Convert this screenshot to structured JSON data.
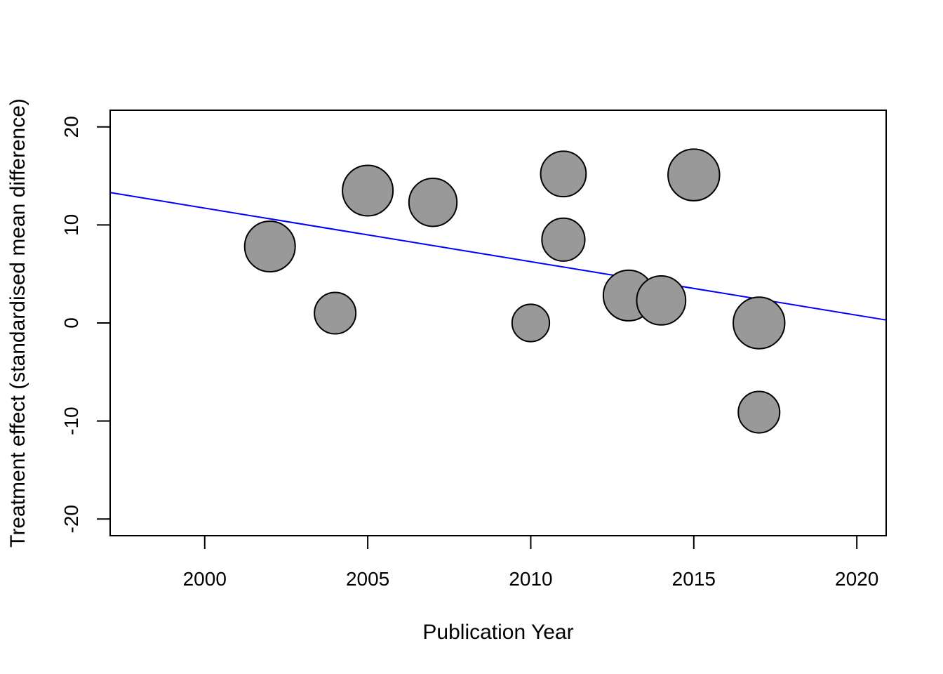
{
  "chart_data": {
    "type": "scatter",
    "title": "",
    "xlabel": "Publication Year",
    "ylabel": "Treatment effect (standardised mean difference)",
    "xlim": [
      1997.1,
      2020.9
    ],
    "ylim": [
      -21.7,
      21.7
    ],
    "x_ticks": [
      "2000",
      "2005",
      "2010",
      "2015",
      "2020"
    ],
    "x_tick_values": [
      2000,
      2005,
      2010,
      2015,
      2020
    ],
    "y_ticks": [
      "-20",
      "-10",
      "0",
      "10",
      "20"
    ],
    "y_tick_values": [
      -20,
      -10,
      0,
      10,
      20
    ],
    "points_relative_size_note_free": true,
    "points": [
      {
        "x": 2002,
        "y": 7.8,
        "size": 1.0
      },
      {
        "x": 2004,
        "y": 1.0,
        "size": 0.82
      },
      {
        "x": 2005,
        "y": 13.5,
        "size": 1.0
      },
      {
        "x": 2007,
        "y": 12.3,
        "size": 0.95
      },
      {
        "x": 2010,
        "y": 0.0,
        "size": 0.74
      },
      {
        "x": 2011,
        "y": 15.2,
        "size": 0.9
      },
      {
        "x": 2011,
        "y": 8.5,
        "size": 0.85
      },
      {
        "x": 2013,
        "y": 2.8,
        "size": 1.0
      },
      {
        "x": 2014,
        "y": 2.3,
        "size": 0.97
      },
      {
        "x": 2015,
        "y": 15.1,
        "size": 1.02
      },
      {
        "x": 2017,
        "y": 0.0,
        "size": 1.02
      },
      {
        "x": 2017,
        "y": -9.1,
        "size": 0.82
      }
    ],
    "regression_line": {
      "x": [
        1997.1,
        2020.9
      ],
      "y": [
        13.3,
        0.3
      ]
    },
    "colors": {
      "point_fill": "#999999",
      "point_stroke": "#000000",
      "line": "#0000ff"
    },
    "grid": false,
    "legend": "none"
  }
}
